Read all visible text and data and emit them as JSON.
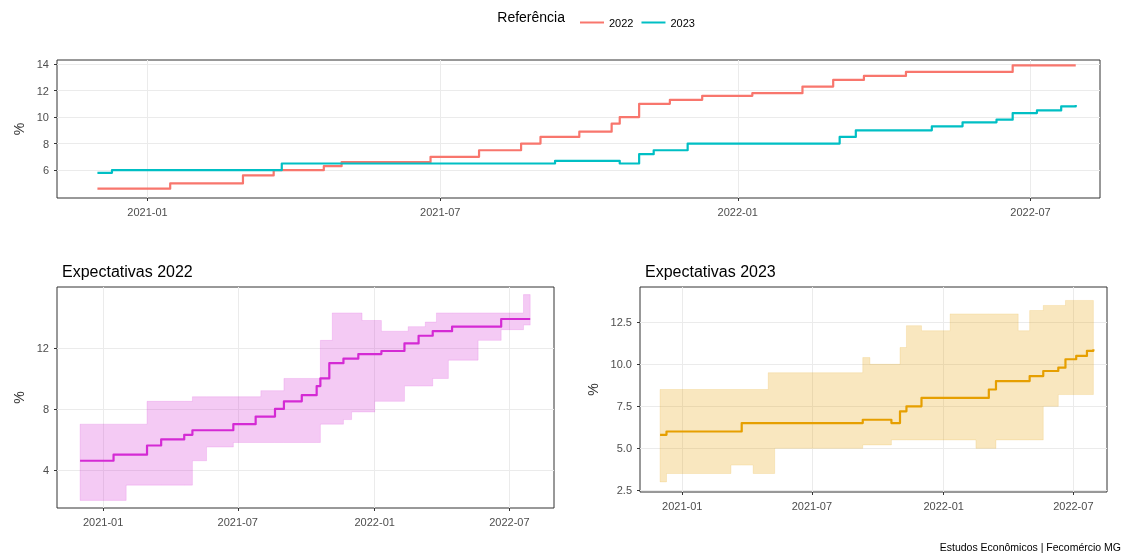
{
  "chart_data": [
    {
      "type": "step",
      "ylabel": "%",
      "legend": "top",
      "legend_title": "Referência",
      "grid": true,
      "xlim": [
        "2020-11-06",
        "2022-08-13"
      ],
      "xticks": [
        "2021-01",
        "2021-07",
        "2022-01",
        "2022-07"
      ],
      "ylim": [
        3.9,
        14.3
      ],
      "yticks": [
        6,
        8,
        10,
        12,
        14
      ],
      "series": [
        {
          "name": "2022",
          "color": "#f8766d",
          "x": [
            "2020-12-01",
            "2021-01-15",
            "2021-03-01",
            "2021-03-20",
            "2021-04-20",
            "2021-05-01",
            "2021-06-25",
            "2021-07-25",
            "2021-08-20",
            "2021-09-01",
            "2021-09-25",
            "2021-10-15",
            "2021-10-20",
            "2021-11-01",
            "2021-11-20",
            "2021-12-10",
            "2022-01-10",
            "2022-02-10",
            "2022-03-01",
            "2022-03-20",
            "2022-04-15",
            "2022-06-20",
            "2022-07-29"
          ],
          "values": [
            4.6,
            5.0,
            5.6,
            6.0,
            6.3,
            6.6,
            7.0,
            7.5,
            8.0,
            8.5,
            8.9,
            9.5,
            10.0,
            11.0,
            11.3,
            11.6,
            11.8,
            12.3,
            12.8,
            13.1,
            13.4,
            13.9,
            13.9
          ]
        },
        {
          "name": "2023",
          "color": "#00bfc4",
          "x": [
            "2020-12-01",
            "2020-12-10",
            "2021-03-25",
            "2021-09-10",
            "2021-10-20",
            "2021-11-01",
            "2021-11-10",
            "2021-12-01",
            "2022-03-05",
            "2022-03-15",
            "2022-05-01",
            "2022-05-20",
            "2022-06-10",
            "2022-06-20",
            "2022-07-05",
            "2022-07-20",
            "2022-07-29"
          ],
          "values": [
            5.8,
            6.0,
            6.5,
            6.7,
            6.5,
            7.2,
            7.5,
            8.0,
            8.5,
            9.0,
            9.3,
            9.6,
            9.8,
            10.3,
            10.5,
            10.8,
            10.9
          ]
        }
      ]
    },
    {
      "type": "step",
      "title": "Expectativas 2022",
      "ylabel": "%",
      "grid": true,
      "xlim": [
        "2020-10-31",
        "2022-08-30"
      ],
      "xticks": [
        "2021-01",
        "2021-07",
        "2022-01",
        "2022-07"
      ],
      "ylim": [
        1.5,
        16
      ],
      "yticks": [
        4,
        8,
        12
      ],
      "series": [
        {
          "color": "#d42ad4",
          "x": [
            "2020-12-01",
            "2021-01-15",
            "2021-02-01",
            "2021-03-01",
            "2021-03-20",
            "2021-04-20",
            "2021-05-01",
            "2021-05-20",
            "2021-06-25",
            "2021-07-25",
            "2021-08-01",
            "2021-08-20",
            "2021-09-01",
            "2021-09-25",
            "2021-10-15",
            "2021-10-20",
            "2021-11-01",
            "2021-11-05",
            "2021-11-20",
            "2021-12-01",
            "2021-12-10",
            "2021-12-15",
            "2022-01-01",
            "2022-01-10",
            "2022-02-10",
            "2022-02-15",
            "2022-03-01",
            "2022-03-10",
            "2022-03-20",
            "2022-03-25",
            "2022-04-10",
            "2022-04-15",
            "2022-05-20",
            "2022-06-20",
            "2022-07-20",
            "2022-07-29"
          ],
          "values": [
            4.6,
            5.0,
            5.0,
            5.6,
            6.0,
            6.3,
            6.6,
            6.6,
            7.0,
            7.5,
            7.5,
            8.0,
            8.5,
            8.9,
            9.5,
            10.0,
            11.0,
            11.0,
            11.3,
            11.3,
            11.6,
            11.6,
            11.6,
            11.8,
            12.3,
            12.3,
            12.8,
            12.8,
            13.1,
            13.1,
            13.1,
            13.4,
            13.4,
            13.9,
            13.9,
            13.9
          ],
          "lower": [
            2.0,
            2.0,
            3.0,
            3.0,
            3.0,
            3.0,
            4.6,
            5.5,
            5.8,
            5.8,
            5.8,
            5.8,
            5.8,
            5.8,
            5.8,
            7.0,
            7.0,
            7.0,
            7.3,
            7.8,
            7.8,
            7.8,
            8.5,
            8.5,
            9.5,
            9.5,
            9.5,
            9.5,
            10.0,
            10.0,
            11.2,
            11.2,
            12.5,
            13.2,
            13.5,
            13.5
          ],
          "upper": [
            7.0,
            7.0,
            7.0,
            8.5,
            8.5,
            8.5,
            8.8,
            8.8,
            8.8,
            8.8,
            9.2,
            9.2,
            10.0,
            10.0,
            10.0,
            12.5,
            12.5,
            14.3,
            14.3,
            14.3,
            14.3,
            13.8,
            13.8,
            13.1,
            13.1,
            13.4,
            13.4,
            13.7,
            13.7,
            14.3,
            14.3,
            14.3,
            14.3,
            14.3,
            15.5,
            15.5
          ]
        }
      ]
    },
    {
      "type": "step",
      "title": "Expectativas 2023",
      "ylabel": "%",
      "grid": true,
      "annotations": [
        "Estudos Econômicos | Fecomércio MG"
      ],
      "xlim": [
        "2020-11-03",
        "2022-08-17"
      ],
      "xticks": [
        "2021-01",
        "2021-07",
        "2022-01",
        "2022-07"
      ],
      "ylim": [
        2.4,
        14.6
      ],
      "yticks": [
        {
          "value": 2.5,
          "label": "2.5"
        },
        {
          "value": 5,
          "label": "5.0"
        },
        {
          "value": 7.5,
          "label": "7.5"
        },
        {
          "value": 10,
          "label": "10.0"
        },
        {
          "value": 12.5,
          "label": "12.5"
        }
      ],
      "series": [
        {
          "color": "#e69f00",
          "x": [
            "2020-12-01",
            "2020-12-10",
            "2021-03-10",
            "2021-03-25",
            "2021-04-10",
            "2021-05-01",
            "2021-05-10",
            "2021-09-10",
            "2021-09-20",
            "2021-10-20",
            "2021-11-01",
            "2021-11-10",
            "2021-12-01",
            "2022-01-05",
            "2022-01-10",
            "2022-02-15",
            "2022-03-05",
            "2022-03-15",
            "2022-04-15",
            "2022-05-01",
            "2022-05-20",
            "2022-06-10",
            "2022-06-20",
            "2022-07-05",
            "2022-07-20",
            "2022-07-29"
          ],
          "values": [
            5.8,
            6.0,
            6.0,
            6.5,
            6.5,
            6.5,
            6.5,
            6.7,
            6.7,
            6.5,
            7.2,
            7.5,
            8.0,
            8.0,
            8.0,
            8.0,
            8.5,
            9.0,
            9.0,
            9.3,
            9.6,
            9.8,
            10.3,
            10.5,
            10.8,
            10.9
          ],
          "lower": [
            3.0,
            3.5,
            4.0,
            4.0,
            3.5,
            3.5,
            5.0,
            5.2,
            5.2,
            5.5,
            5.5,
            5.5,
            5.5,
            5.5,
            5.5,
            5.0,
            5.0,
            5.5,
            5.5,
            5.5,
            7.5,
            8.2,
            8.2,
            8.2,
            8.2,
            8.2
          ],
          "upper": [
            8.5,
            8.5,
            8.5,
            8.5,
            8.5,
            9.5,
            9.5,
            10.4,
            10.0,
            10.0,
            11.0,
            12.3,
            12.0,
            12.0,
            13.0,
            13.0,
            13.0,
            13.0,
            12.0,
            13.2,
            13.5,
            13.5,
            13.8,
            13.8,
            13.8,
            13.8
          ]
        }
      ]
    }
  ]
}
